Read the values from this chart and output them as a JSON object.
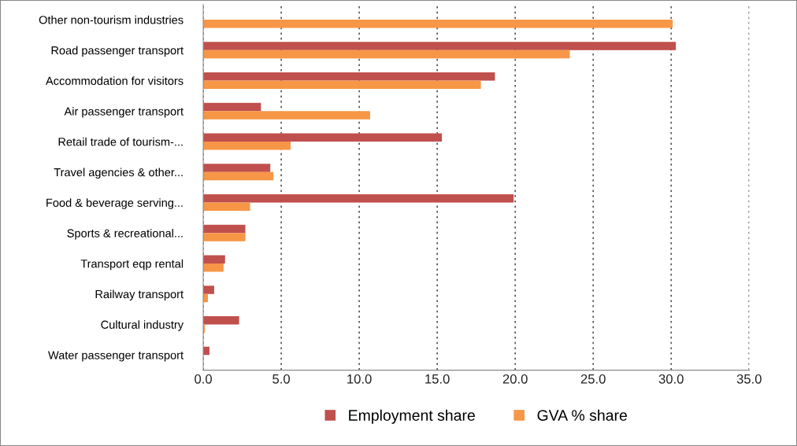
{
  "chart_data": {
    "type": "bar",
    "orientation": "horizontal",
    "categories": [
      "Other non-tourism industries",
      "Road passenger transport",
      "Accommodation for visitors",
      "Air passenger transport",
      "Retail trade of tourism-...",
      "Travel agencies & other...",
      "Food & beverage serving...",
      "Sports & recreational...",
      "Transport eqp rental",
      "Railway transport",
      "Cultural industry",
      "Water passenger transport"
    ],
    "series": [
      {
        "name": "Employment share",
        "color": "#c0504d",
        "values": [
          null,
          30.3,
          18.7,
          3.7,
          15.3,
          4.3,
          19.9,
          2.7,
          1.4,
          0.7,
          2.3,
          0.4
        ]
      },
      {
        "name": "GVA % share",
        "color": "#f79646",
        "values": [
          30.1,
          23.5,
          17.8,
          10.7,
          5.6,
          4.5,
          3.0,
          2.7,
          1.3,
          0.3,
          0.1,
          null
        ]
      }
    ],
    "xlim": [
      0,
      35
    ],
    "xticks": [
      {
        "value": 0,
        "label": "0.0"
      },
      {
        "value": 5,
        "label": "5.0"
      },
      {
        "value": 10,
        "label": "10.0"
      },
      {
        "value": 15,
        "label": "15.0"
      },
      {
        "value": 20,
        "label": "20.0"
      },
      {
        "value": 25,
        "label": "25.0"
      },
      {
        "value": 30,
        "label": "30.0"
      },
      {
        "value": 35,
        "label": "35.0"
      }
    ],
    "grid": "x",
    "legend": "bottom"
  }
}
